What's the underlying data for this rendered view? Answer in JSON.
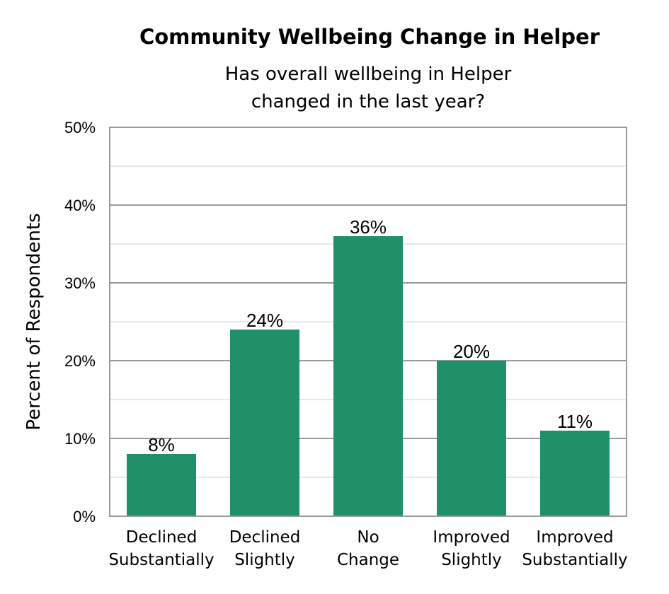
{
  "chart_data": {
    "type": "bar",
    "title": "Community Wellbeing Change in Helper",
    "subtitle": [
      "Has overall wellbeing in Helper",
      "changed in the last year?"
    ],
    "xlabel": "",
    "ylabel": "Percent of Respondents",
    "categories": [
      [
        "Declined",
        "Substantially"
      ],
      [
        "Declined",
        "Slightly"
      ],
      [
        "No",
        "Change"
      ],
      [
        "Improved",
        "Slightly"
      ],
      [
        "Improved",
        "Substantially"
      ]
    ],
    "values": [
      8,
      24,
      36,
      20,
      11
    ],
    "data_labels": [
      "8%",
      "24%",
      "36%",
      "20%",
      "11%"
    ],
    "ylim": [
      0,
      50
    ],
    "yticks": [
      0,
      10,
      20,
      30,
      40,
      50
    ],
    "ytick_labels": [
      "0%",
      "10%",
      "20%",
      "30%",
      "40%",
      "50%"
    ],
    "minor_gridlines": [
      5,
      15,
      25,
      35,
      45
    ],
    "grid": true,
    "legend": "none",
    "bar_color": "#1f9068"
  }
}
